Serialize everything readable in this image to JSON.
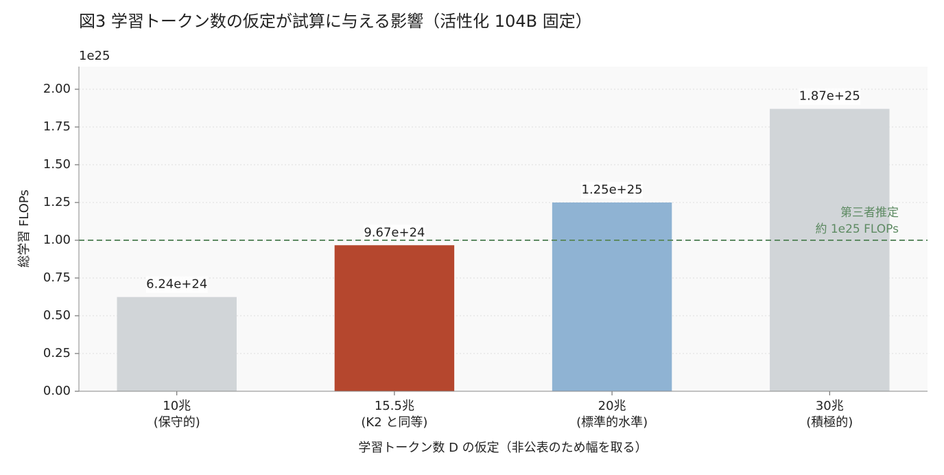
{
  "chart_data": {
    "type": "bar",
    "title": "図3 学習トークン数の仮定が試算に与える影響（活性化 104B 固定）",
    "x_label": "学習トークン数 D の仮定（非公表のため幅を取る）",
    "y_label": "総学習 FLOPs",
    "y_offset_label": "1e25",
    "categories": [
      [
        "10兆",
        "(保守的)"
      ],
      [
        "15.5兆",
        "(K2 と同等)"
      ],
      [
        "20兆",
        "(標準的水準)"
      ],
      [
        "30兆",
        "(積極的)"
      ]
    ],
    "values": [
      0.624,
      0.967,
      1.25,
      1.87
    ],
    "value_labels": [
      "6.24e+24",
      "9.67e+24",
      "1.25e+25",
      "1.87e+25"
    ],
    "colors": [
      "#d1d5d8",
      "#b5472e",
      "#8fb3d3",
      "#d1d5d8"
    ],
    "ylim": [
      0,
      2.15
    ],
    "yticks": [
      {
        "value": 0,
        "label": "0.00"
      },
      {
        "value": 0.25,
        "label": "0.25"
      },
      {
        "value": 0.5,
        "label": "0.50"
      },
      {
        "value": 0.75,
        "label": "0.75"
      },
      {
        "value": 1,
        "label": "1.00"
      },
      {
        "value": 1.25,
        "label": "1.25"
      },
      {
        "value": 1.5,
        "label": "1.50"
      },
      {
        "value": 1.75,
        "label": "1.75"
      },
      {
        "value": 2,
        "label": "2.00"
      }
    ],
    "grid": true,
    "reference_line": {
      "value": 1,
      "color": "#5d8a62",
      "label": [
        "第三者推定",
        "約 1e25 FLOPs"
      ]
    }
  }
}
